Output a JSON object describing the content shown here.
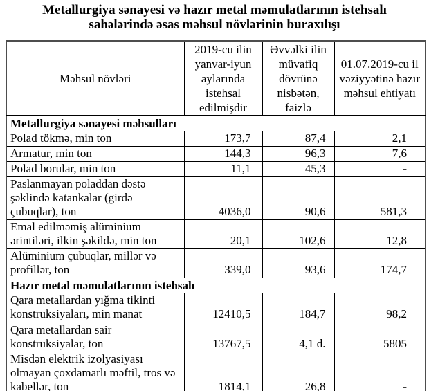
{
  "title": "Metallurgiya sənayesi və hazır metal məmulatlarının istehsalı sahələrində əsas məhsul növlərinin buraxılışı",
  "table": {
    "columns": [
      "Məhsul növləri",
      "2019-cu ilin yanvar-iyun aylarında istehsal edilmişdir",
      "Əvvəlki ilin müvafiq dövrünə nisbətən, faizlə",
      "01.07.2019-cu il vəziyyətinə hazır məhsul ehtiyatı"
    ],
    "sections": [
      {
        "header": "Metallurgiya sənayesi məhsulları",
        "rows": [
          {
            "label": "Polad tökmə, min ton",
            "produced": "173,7",
            "vs_prev_year": "87,4",
            "stock": "2,1"
          },
          {
            "label": "Armatur, min ton",
            "produced": "144,3",
            "vs_prev_year": "96,3",
            "stock": "7,6"
          },
          {
            "label": "Polad borular,  min ton",
            "produced": "11,1",
            "vs_prev_year": "45,3",
            "stock": "-"
          },
          {
            "label": "Paslanmayan poladdan dəstə şəklində katankalar (girdə çubuqlar), ton",
            "produced": "4036,0",
            "vs_prev_year": "90,6",
            "stock": "581,3"
          },
          {
            "label": "Emal edilməmiş alüminium ərintiləri, ilkin şəkildə, min ton",
            "produced": "20,1",
            "vs_prev_year": "102,6",
            "stock": "12,8"
          },
          {
            "label": "Alüminium çubuqlar, millər və profillər, ton",
            "produced": "339,0",
            "vs_prev_year": "93,6",
            "stock": "174,7"
          }
        ]
      },
      {
        "header": "Hazır metal məmulatlarının istehsalı",
        "rows": [
          {
            "label": "Qara metallardan yığma tikinti konstruksiyaları, min manat",
            "produced": "12410,5",
            "vs_prev_year": "184,7",
            "stock": "98,2"
          },
          {
            "label": "Qara metallardan sair konstruksiyalar, ton",
            "produced": "13767,5",
            "vs_prev_year": "4,1 d.",
            "stock": "5805"
          },
          {
            "label": "Misdən elektrik izolyasiyası olmayan çoxdamarlı məftil, tros və kabellər, ton",
            "produced": "1814,1",
            "vs_prev_year": "26,8",
            "stock": "-"
          }
        ]
      }
    ]
  }
}
